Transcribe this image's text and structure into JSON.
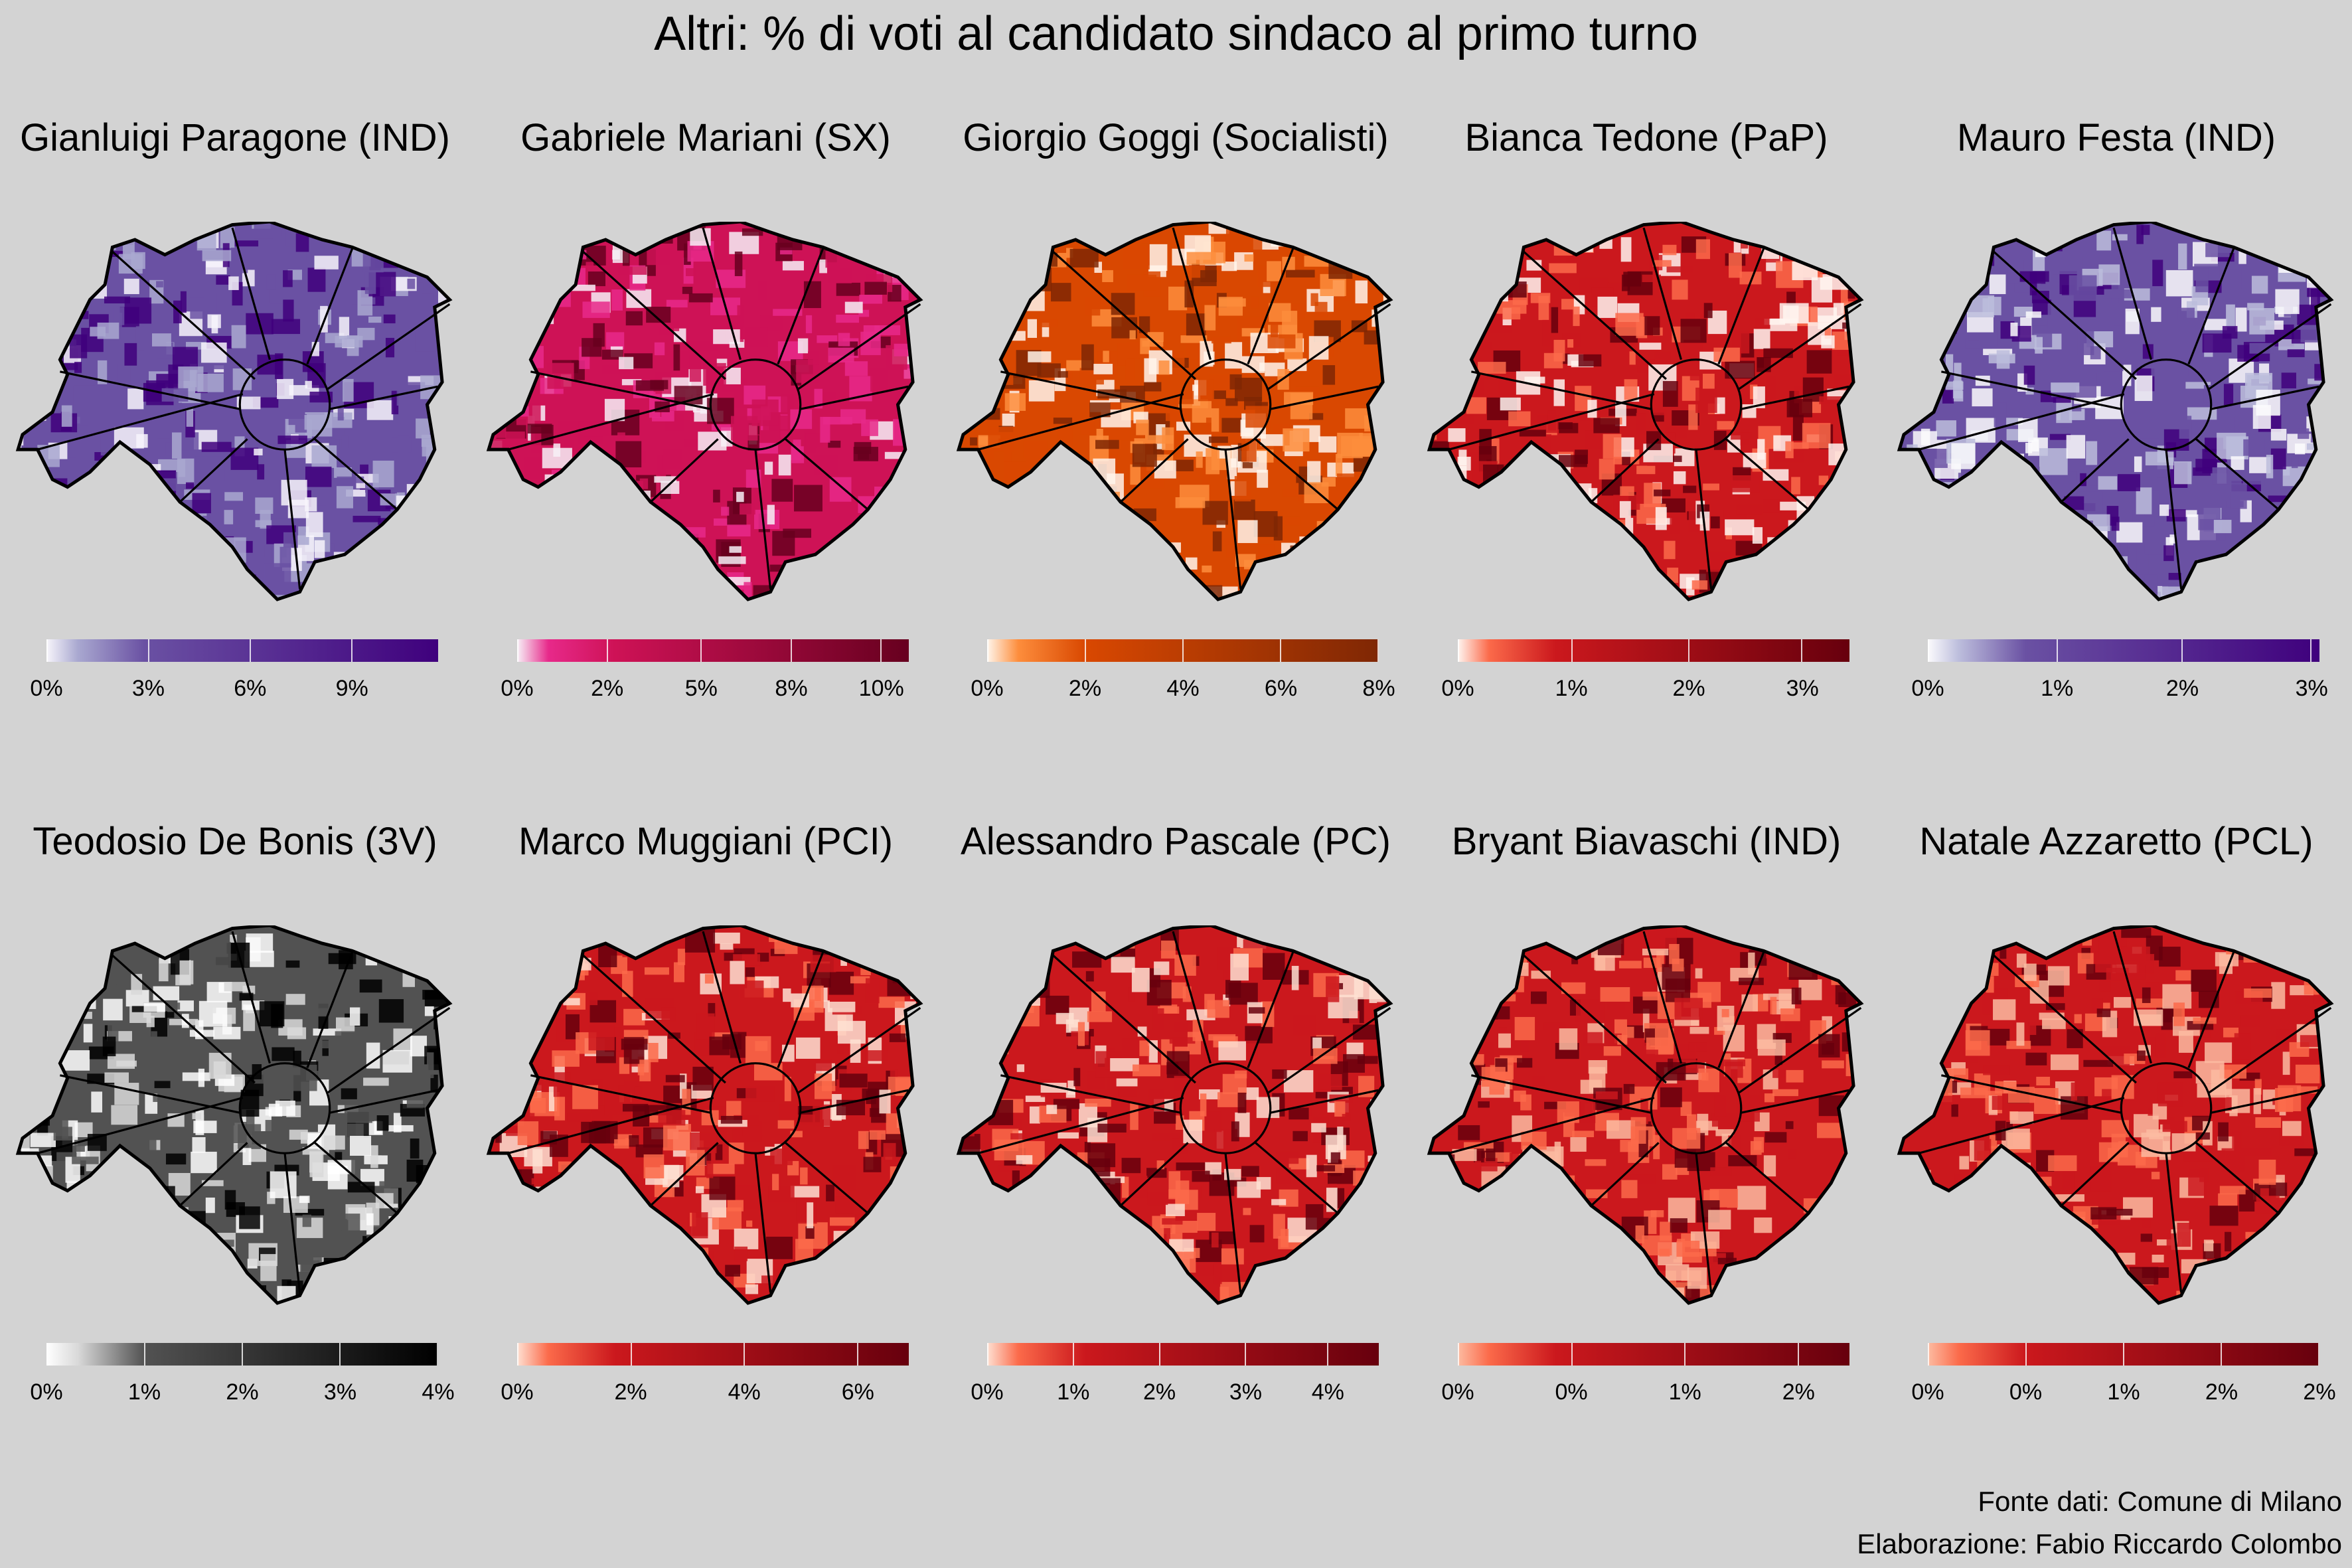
{
  "title": "Altri: % di voti al candidato sindaco al primo turno",
  "caption": {
    "source": "Fonte dati: Comune di Milano",
    "author": "Elaborazione: Fabio Riccardo Colombo"
  },
  "chart_data": {
    "type": "choropleth-small-multiples",
    "panels": [
      {
        "title": "Gianluigi Paragone (IND)",
        "ticks": [
          "0%",
          "3%",
          "6%",
          "9%"
        ],
        "colors": [
          "#f7f5fb",
          "#a9a8d0",
          "#6a51a3",
          "#3f007d"
        ]
      },
      {
        "title": "Gabriele Mariani (SX)",
        "ticks": [
          "0%",
          "2%",
          "5%",
          "8%",
          "10%"
        ],
        "colors": [
          "#f7f0f7",
          "#e7298a",
          "#ce1256",
          "#67001f"
        ]
      },
      {
        "title": "Giorgio Goggi (Socialisti)",
        "ticks": [
          "0%",
          "2%",
          "4%",
          "6%",
          "8%"
        ],
        "colors": [
          "#fff5eb",
          "#fd8d3c",
          "#d94801",
          "#7f2704"
        ]
      },
      {
        "title": "Bianca Tedone (PaP)",
        "ticks": [
          "0%",
          "1%",
          "2%",
          "3%"
        ],
        "colors": [
          "#fff5f0",
          "#fb6a4a",
          "#cb181d",
          "#67000d"
        ]
      },
      {
        "title": "Mauro Festa (IND)",
        "ticks": [
          "0%",
          "1%",
          "2%",
          "3%"
        ],
        "colors": [
          "#fcfbfd",
          "#bcbddc",
          "#6a51a3",
          "#3f007d"
        ]
      },
      {
        "title": "Teodosio De Bonis (3V)",
        "ticks": [
          "0%",
          "1%",
          "2%",
          "3%",
          "4%"
        ],
        "colors": [
          "#ffffff",
          "#d9d9d9",
          "#525252",
          "#000000"
        ]
      },
      {
        "title": "Marco Muggiani (PCI)",
        "ticks": [
          "0%",
          "2%",
          "4%",
          "6%"
        ],
        "colors": [
          "#fee0d2",
          "#fb6a4a",
          "#cb181d",
          "#67000d"
        ]
      },
      {
        "title": "Alessandro Pascale (PC)",
        "ticks": [
          "0%",
          "1%",
          "2%",
          "3%",
          "4%"
        ],
        "colors": [
          "#fee0d2",
          "#fb6a4a",
          "#cb181d",
          "#67000d"
        ]
      },
      {
        "title": "Bryant Biavaschi (IND)",
        "ticks": [
          "0%",
          "0%",
          "1%",
          "2%"
        ],
        "colors": [
          "#fcbba1",
          "#fb6a4a",
          "#cb181d",
          "#67000d"
        ]
      },
      {
        "title": "Natale Azzaretto (PCL)",
        "ticks": [
          "0%",
          "0%",
          "1%",
          "2%",
          "2%"
        ],
        "colors": [
          "#fcbba1",
          "#fb6a4a",
          "#cb181d",
          "#67000d"
        ]
      }
    ]
  }
}
